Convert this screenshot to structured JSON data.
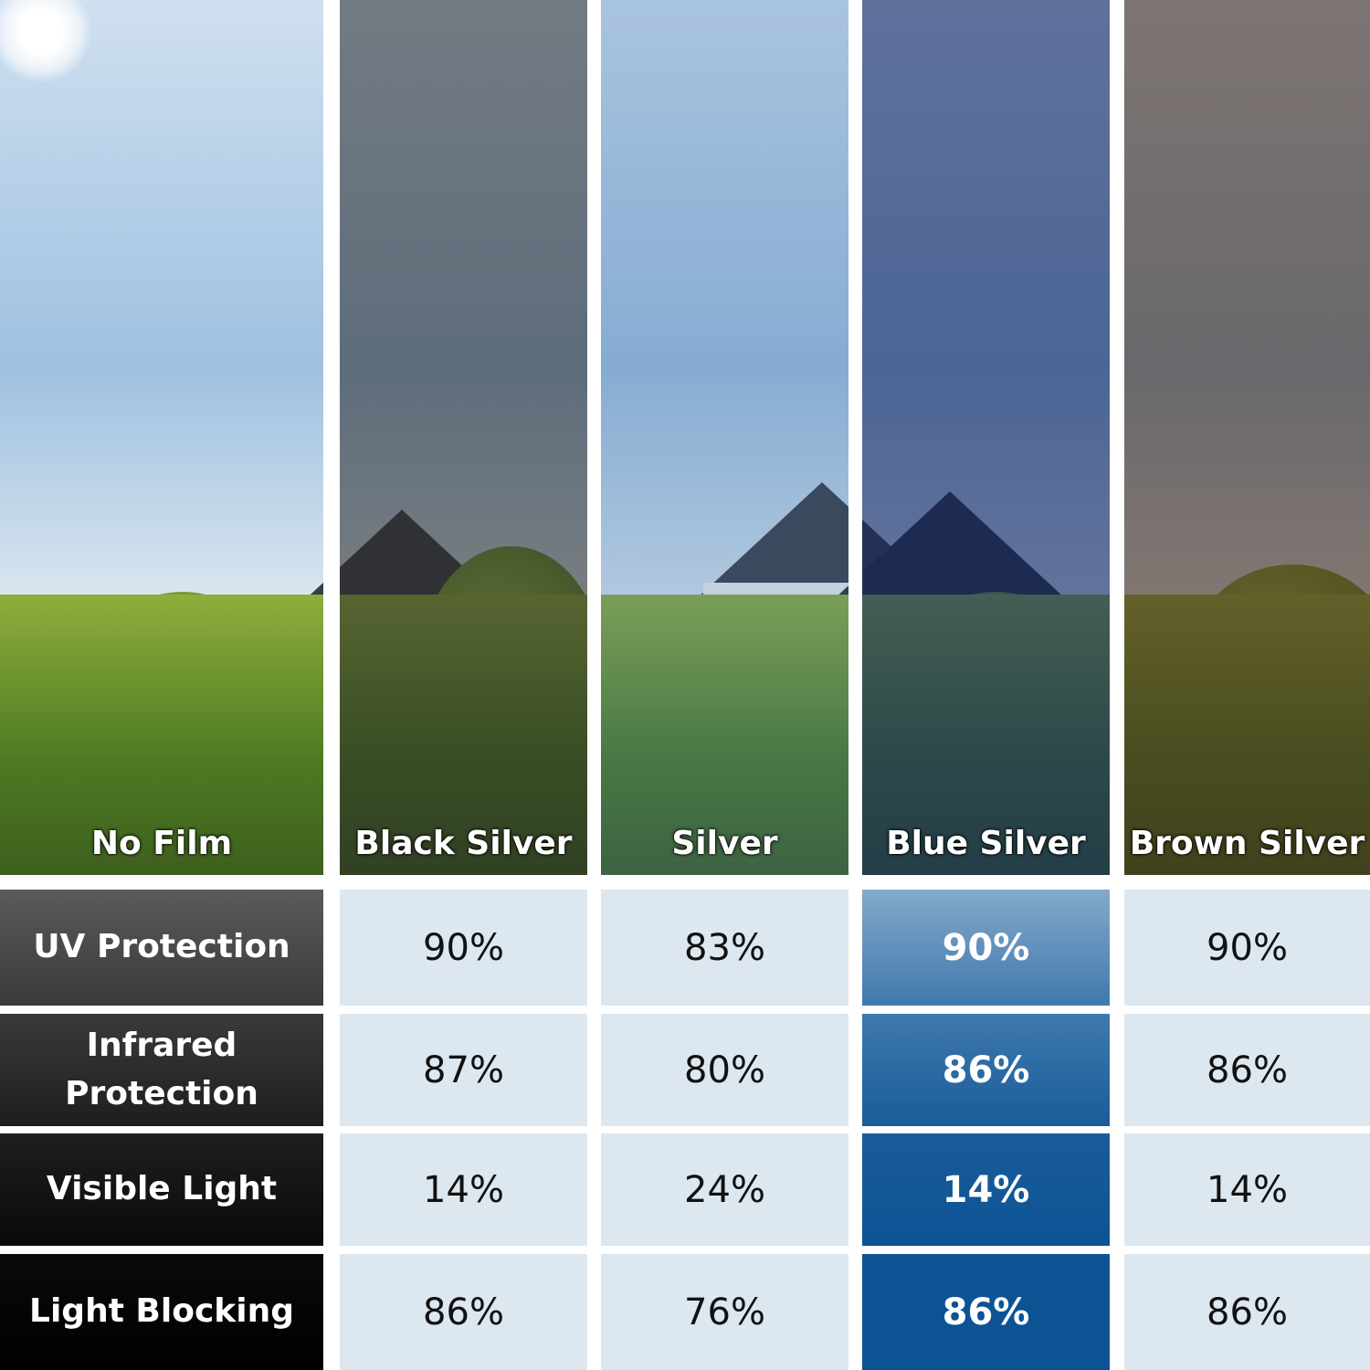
{
  "films": [
    {
      "label": "No Film",
      "tint": "transparent"
    },
    {
      "label": "Black Silver",
      "tint": "rgba(40,40,40,0.55)"
    },
    {
      "label": "Silver",
      "tint": "rgba(60,110,170,0.25)"
    },
    {
      "label": "Blue Silver",
      "tint": "rgba(20,40,100,0.6)"
    },
    {
      "label": "Brown Silver",
      "tint": "rgba(70,45,30,0.6)"
    }
  ],
  "rows": [
    {
      "label": "UV Protection",
      "values": [
        "90%",
        "83%",
        "90%",
        "90%"
      ]
    },
    {
      "label": "Infrared Protection",
      "values": [
        "87%",
        "80%",
        "86%",
        "86%"
      ]
    },
    {
      "label": "Visible Light",
      "values": [
        "14%",
        "24%",
        "14%",
        "14%"
      ]
    },
    {
      "label": "Light Blocking",
      "values": [
        "86%",
        "76%",
        "86%",
        "86%"
      ]
    }
  ],
  "colors": {
    "cell_bg": "#dde7f0",
    "highlight_column": [
      "#84a9cb",
      "#3f79ad",
      "#1a5c9a",
      "#0d5394"
    ],
    "row_header": [
      "#5a5a5a",
      "#3a3a3a",
      "#1e1e1e",
      "#0a0a0a"
    ]
  }
}
